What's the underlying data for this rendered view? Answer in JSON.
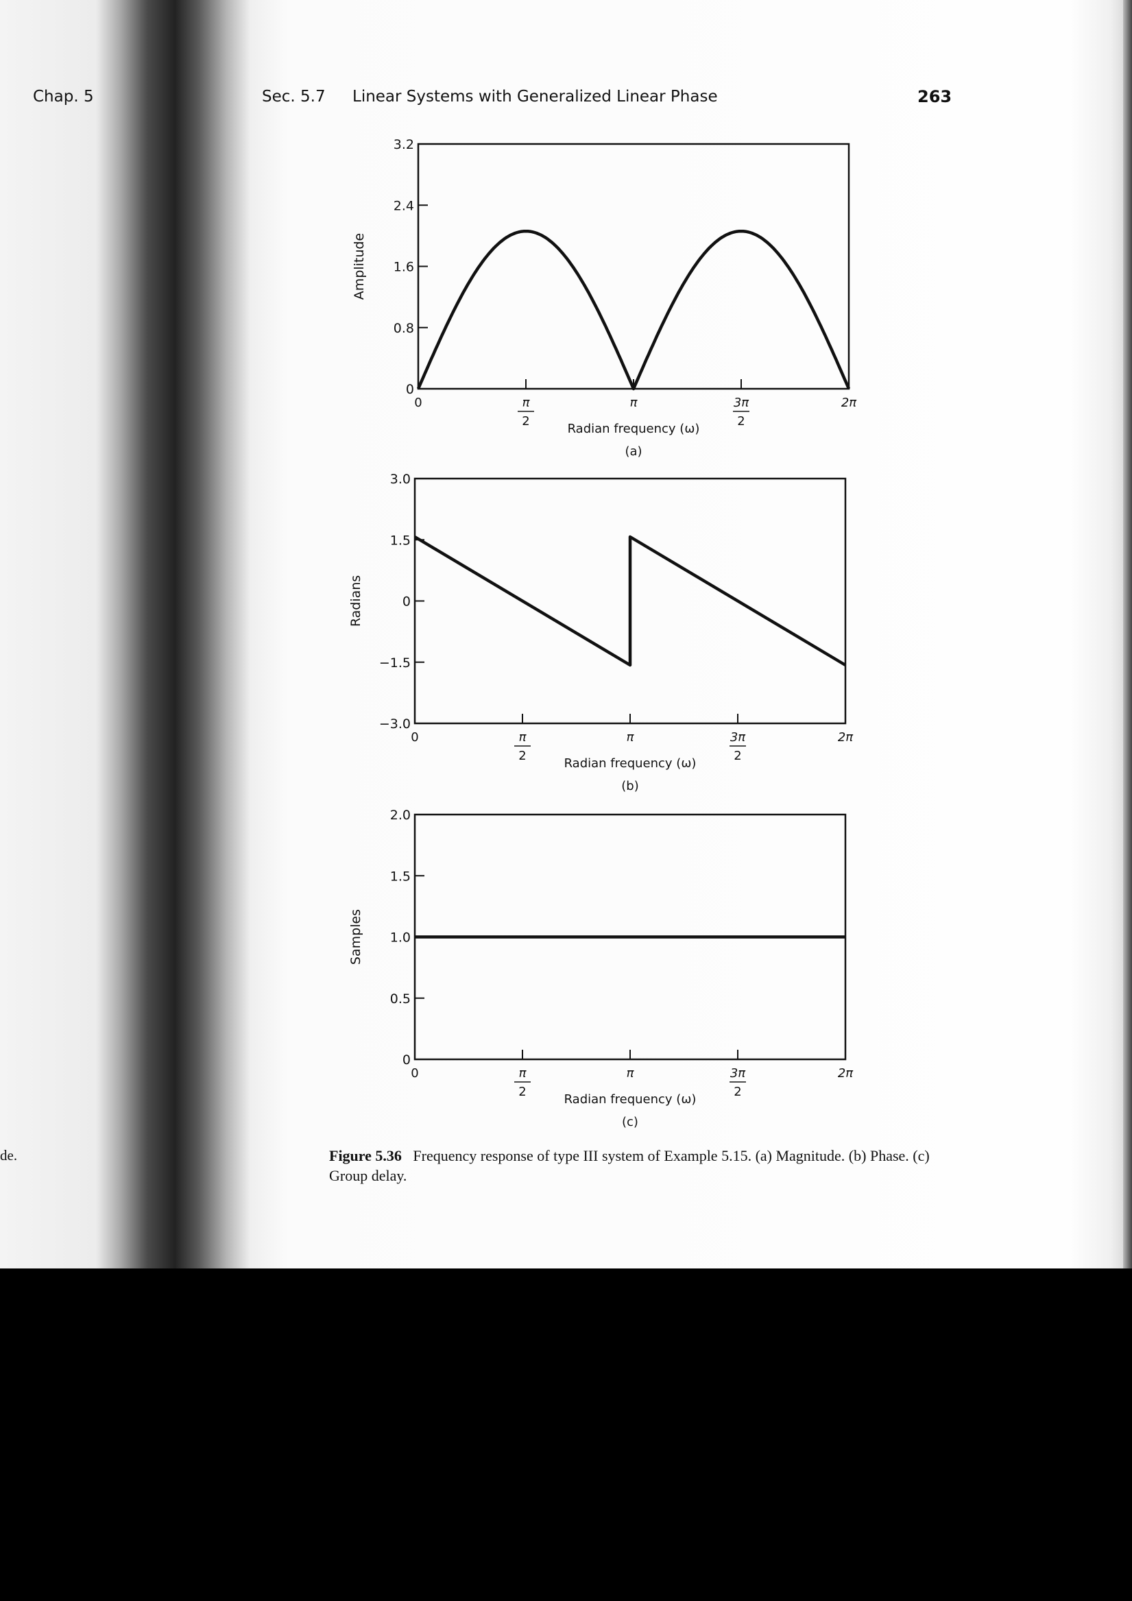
{
  "header": {
    "chapter": "Chap. 5",
    "section": "Sec. 5.7",
    "title": "Linear Systems with Generalized Linear Phase",
    "page_number": "263"
  },
  "side_text": "de.",
  "caption": {
    "label": "Figure 5.36",
    "text": "Frequency response of type III system of Example 5.15. (a) Magnitude. (b) Phase. (c) Group delay."
  },
  "x_tick_labels": [
    "0",
    "π/2",
    "π",
    "3π/2",
    "2π"
  ],
  "chart_data": [
    {
      "type": "line",
      "panel": "(a)",
      "xlabel": "Radian frequency (ω)",
      "ylabel": "Amplitude",
      "xlim": [
        0,
        6.2832
      ],
      "ylim": [
        0,
        3.2
      ],
      "yticks": [
        0,
        0.8,
        1.6,
        2.4,
        3.2
      ],
      "ytick_labels": [
        "0",
        "0.8",
        "1.6",
        "2.4",
        "3.2"
      ],
      "xticks": [
        0,
        1.5708,
        3.1416,
        4.7124,
        6.2832
      ],
      "grid": false,
      "x": [
        0,
        0.3927,
        0.7854,
        1.1781,
        1.5708,
        1.9635,
        2.3562,
        2.7489,
        3.1416,
        3.5343,
        3.927,
        4.3197,
        4.7124,
        5.1051,
        5.4978,
        5.8905,
        6.2832
      ],
      "y": [
        0,
        0.79,
        1.46,
        1.91,
        2.06,
        1.91,
        1.46,
        0.79,
        0,
        0.79,
        1.46,
        1.91,
        2.06,
        1.91,
        1.46,
        0.79,
        0
      ]
    },
    {
      "type": "line",
      "panel": "(b)",
      "xlabel": "Radian frequency (ω)",
      "ylabel": "Radians",
      "xlim": [
        0,
        6.2832
      ],
      "ylim": [
        -3.0,
        3.0
      ],
      "yticks": [
        -3.0,
        -1.5,
        0,
        1.5,
        3.0
      ],
      "ytick_labels": [
        "−3.0",
        "−1.5",
        "0",
        "1.5",
        "3.0"
      ],
      "xticks": [
        0,
        1.5708,
        3.1416,
        4.7124,
        6.2832
      ],
      "grid": false,
      "x": [
        0,
        3.1416,
        3.1416,
        6.2832
      ],
      "y": [
        1.5708,
        -1.5708,
        1.5708,
        -1.5708
      ]
    },
    {
      "type": "line",
      "panel": "(c)",
      "xlabel": "Radian frequency (ω)",
      "ylabel": "Samples",
      "xlim": [
        0,
        6.2832
      ],
      "ylim": [
        0,
        2.0
      ],
      "yticks": [
        0,
        0.5,
        1.0,
        1.5,
        2.0
      ],
      "ytick_labels": [
        "0",
        "0.5",
        "1.0",
        "1.5",
        "2.0"
      ],
      "xticks": [
        0,
        1.5708,
        3.1416,
        4.7124,
        6.2832
      ],
      "grid": false,
      "x": [
        0,
        6.2832
      ],
      "y": [
        1.0,
        1.0
      ]
    }
  ]
}
